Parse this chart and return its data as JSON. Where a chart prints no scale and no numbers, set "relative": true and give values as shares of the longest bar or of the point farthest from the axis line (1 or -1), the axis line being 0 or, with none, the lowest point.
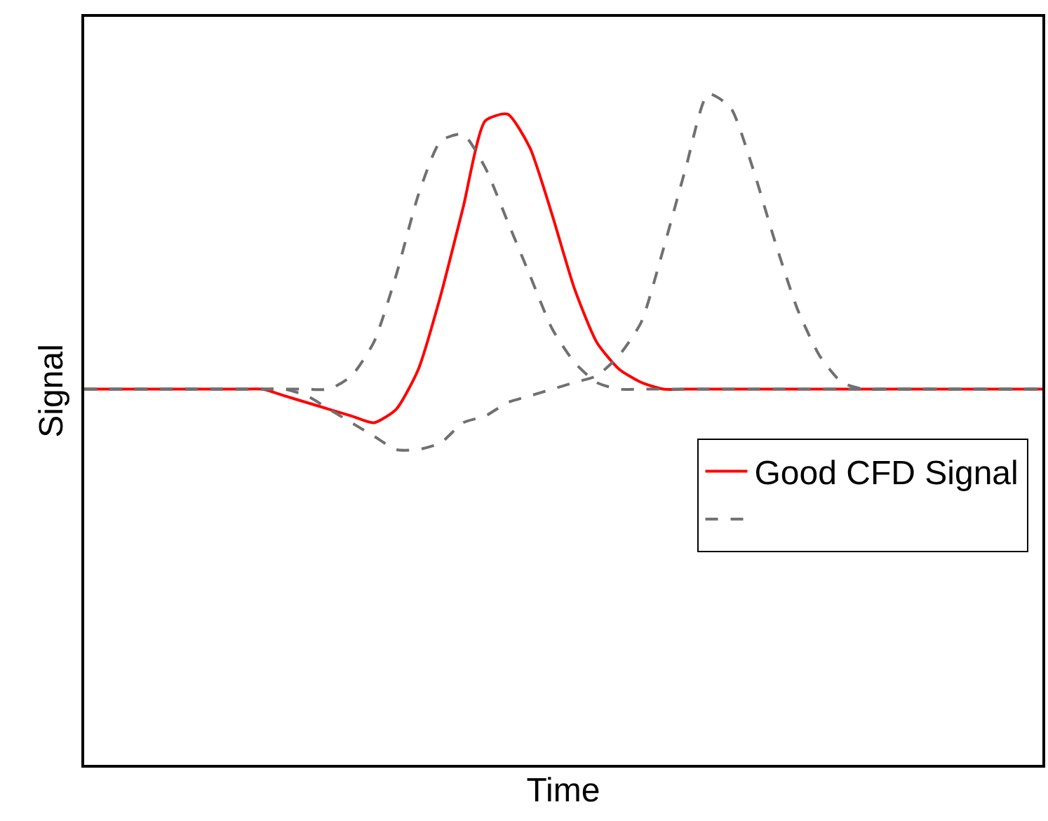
{
  "chart_data": {
    "type": "line",
    "relative": true,
    "xlabel": "Time",
    "ylabel": "Signal",
    "legend": "right",
    "marker": "none",
    "categories": [
      null,
      null,
      null,
      null,
      null,
      null,
      null,
      null,
      null,
      null,
      null,
      null,
      null,
      null,
      null,
      null,
      null,
      null,
      null,
      null,
      null,
      null,
      null,
      null,
      null,
      null,
      null,
      null,
      null,
      null,
      null,
      null,
      null,
      null,
      null,
      null,
      null,
      null,
      null,
      null,
      null,
      null,
      null,
      null
    ],
    "series": [
      {
        "name": "Good CFD Signal",
        "color": "#ff0000",
        "line_style": "solid",
        "values": [
          0.56,
          0.56,
          0.56,
          0.56,
          0.56,
          0.56,
          0.56,
          0.56,
          0.56,
          0.55,
          0.54,
          0.53,
          0.52,
          0.51,
          0.53,
          0.59,
          0.7,
          0.83,
          0.96,
          0.97,
          0.92,
          0.82,
          0.71,
          0.63,
          0.59,
          0.57,
          0.56,
          0.56,
          0.56,
          0.56,
          0.56,
          0.56,
          0.56,
          0.56,
          0.56,
          0.56,
          0.56,
          0.56,
          0.56,
          0.56,
          0.56,
          0.56,
          0.56,
          0.56
        ]
      },
      {
        "color": "#707070",
        "line_style": "dashed",
        "values": [
          0.56,
          0.56,
          0.56,
          0.56,
          0.56,
          0.56,
          0.56,
          0.56,
          0.56,
          0.56,
          0.56,
          0.56,
          0.58,
          0.63,
          0.73,
          0.85,
          0.93,
          0.94,
          0.89,
          0.81,
          0.73,
          0.65,
          0.6,
          0.57,
          0.56,
          0.56,
          0.56,
          0.56,
          0.56,
          0.56,
          0.56,
          0.56,
          0.56,
          0.56,
          0.56,
          0.56,
          0.56,
          0.56,
          0.56,
          0.56,
          0.56,
          0.56,
          0.56,
          0.56
        ]
      },
      {
        "color": "#707070",
        "line_style": "dashed",
        "values": [
          0.56,
          0.56,
          0.56,
          0.56,
          0.56,
          0.56,
          0.56,
          0.56,
          0.56,
          0.56,
          0.55,
          0.53,
          0.51,
          0.49,
          0.47,
          0.47,
          0.48,
          0.51,
          0.52,
          0.54,
          0.55,
          0.56,
          0.57,
          0.58,
          0.61,
          0.66,
          0.77,
          0.89,
          1.0,
          0.98,
          0.89,
          0.78,
          0.68,
          0.61,
          0.57,
          0.56,
          0.56,
          0.56,
          0.56,
          0.56,
          0.56,
          0.56,
          0.56,
          0.56
        ]
      }
    ]
  }
}
